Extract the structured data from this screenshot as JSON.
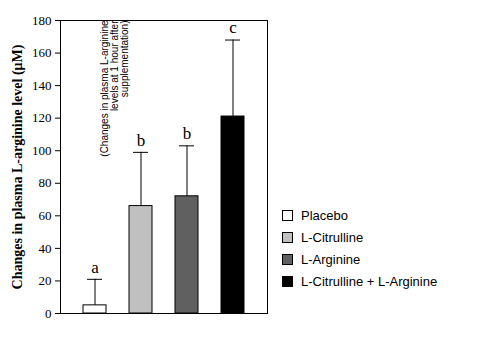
{
  "chart_data": {
    "type": "bar",
    "y_label": "Changes in plasma L-arginine level (μM)",
    "annotation": "(Changes in plasma L-arginine levels at 1 hour after supplementation)",
    "categories": [
      "Placebo",
      "L-Citrulline",
      "L-Arginine",
      "L-Citrulline + L-Arginine"
    ],
    "values": [
      5,
      66,
      72,
      121
    ],
    "errors": [
      16,
      33,
      31,
      47
    ],
    "significance": [
      "a",
      "b",
      "b",
      "c"
    ],
    "colors": [
      "#ffffff",
      "#c0c0c0",
      "#606060",
      "#000000"
    ],
    "ylim": [
      0,
      180
    ],
    "yticks": [
      0,
      20,
      40,
      60,
      80,
      100,
      120,
      140,
      160,
      180
    ],
    "grid": false,
    "legend": "right",
    "tick_labels": "y"
  }
}
